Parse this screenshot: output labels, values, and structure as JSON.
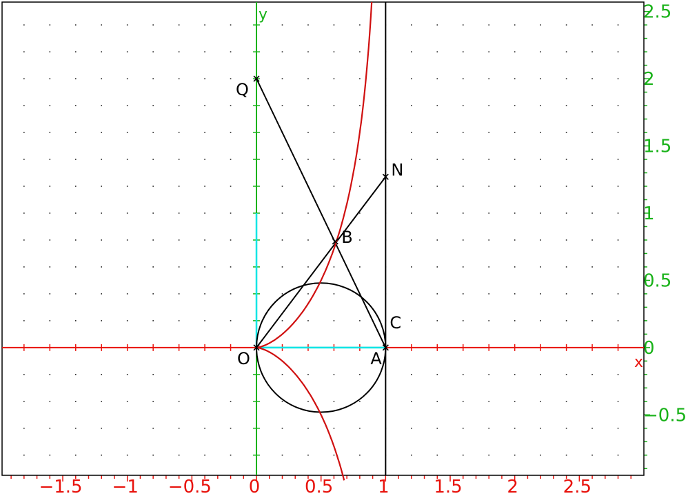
{
  "axes": {
    "x_label": "x",
    "y_label": "y",
    "x_range": [
      -1.97,
      3.0
    ],
    "y_range": [
      -0.95,
      2.57
    ],
    "x_ticks": [
      "−1.5",
      "−1",
      "−0.5",
      "0",
      "0.5",
      "1",
      "1.5",
      "2",
      "2.5"
    ],
    "x_tick_values": [
      -1.5,
      -1,
      -0.5,
      0,
      0.5,
      1,
      1.5,
      2,
      2.5
    ],
    "y_ticks": [
      "−0.5",
      "0",
      "0.5",
      "1",
      "1.5",
      "2",
      "2.5"
    ],
    "y_tick_values": [
      -0.5,
      0,
      0.5,
      1,
      1.5,
      2,
      2.5
    ],
    "grid": "dotted",
    "colors": {
      "x_axis": "#e8120c",
      "y_axis": "#19b219",
      "highlight": "#00e5e5",
      "curve": "#d01010",
      "figure": "#000000"
    }
  },
  "points": [
    {
      "label": "O",
      "x": 0,
      "y": 0
    },
    {
      "label": "A",
      "x": 1,
      "y": 0
    },
    {
      "label": "C",
      "x": 1,
      "y": 0
    },
    {
      "label": "B",
      "x": 0.61,
      "y": 0.79
    },
    {
      "label": "N",
      "x": 1,
      "y": 1.27
    },
    {
      "label": "Q",
      "x": 0,
      "y": 2
    }
  ],
  "figure": {
    "circle": {
      "center": [
        0.5,
        0
      ],
      "radius": 0.5
    },
    "vertical_line_x": 1,
    "segments": [
      [
        "O",
        "N"
      ],
      [
        "Q",
        "A"
      ]
    ],
    "curve_note": "curve y = x^(3/2) / sqrt(1 - x), both branches"
  }
}
